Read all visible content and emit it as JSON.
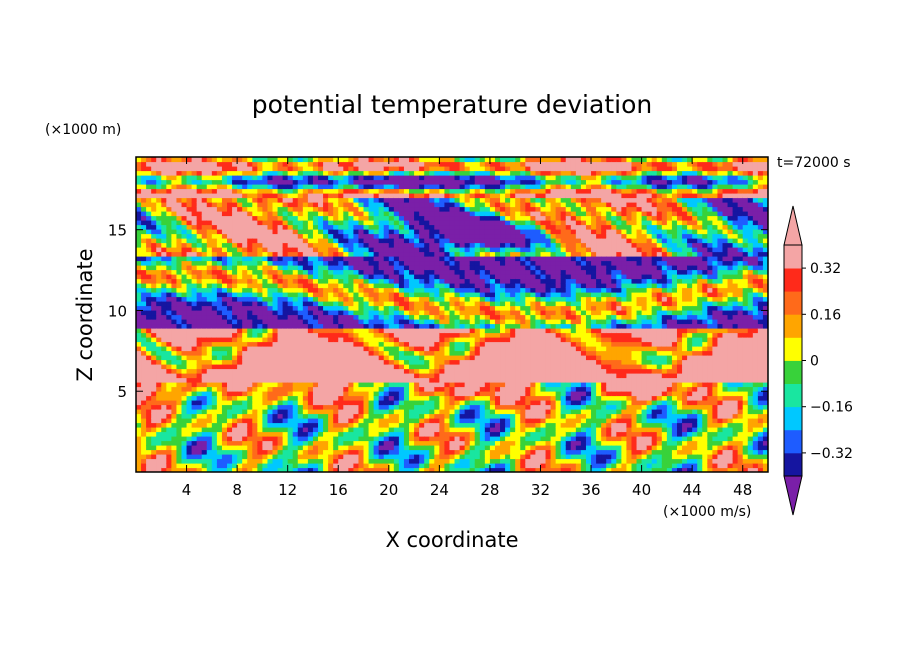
{
  "chart_data": {
    "type": "heatmap",
    "title": "potential temperature deviation",
    "xlabel": "X coordinate",
    "ylabel": "Z coordinate",
    "x_unit": "(×1000 m/s)",
    "y_unit": "(×1000 m)",
    "time_label": "t=72000 s",
    "xlim": [
      0,
      50
    ],
    "ylim": [
      0,
      19.5
    ],
    "x_ticks": [
      4,
      8,
      12,
      16,
      20,
      24,
      28,
      32,
      36,
      40,
      44,
      48
    ],
    "y_ticks": [
      5,
      10,
      15
    ],
    "colorbar": {
      "levels": [
        -0.4,
        -0.32,
        -0.24,
        -0.16,
        -0.08,
        0,
        0.08,
        0.16,
        0.24,
        0.32,
        0.4
      ],
      "colors": [
        "#7a1fa8",
        "#1515a0",
        "#1e5cff",
        "#00c8ff",
        "#19e6a0",
        "#38d23a",
        "#ffff00",
        "#ffa500",
        "#ff6a1a",
        "#ff2a1a",
        "#f4a5a5"
      ],
      "under_color": "#7a1fa8",
      "over_color": "#f4a5a5",
      "tick_labels": [
        "0.32",
        "0.16",
        "0",
        "−0.16",
        "−0.32"
      ],
      "tick_values": [
        0.32,
        0.16,
        0,
        -0.16,
        -0.32
      ]
    }
  }
}
